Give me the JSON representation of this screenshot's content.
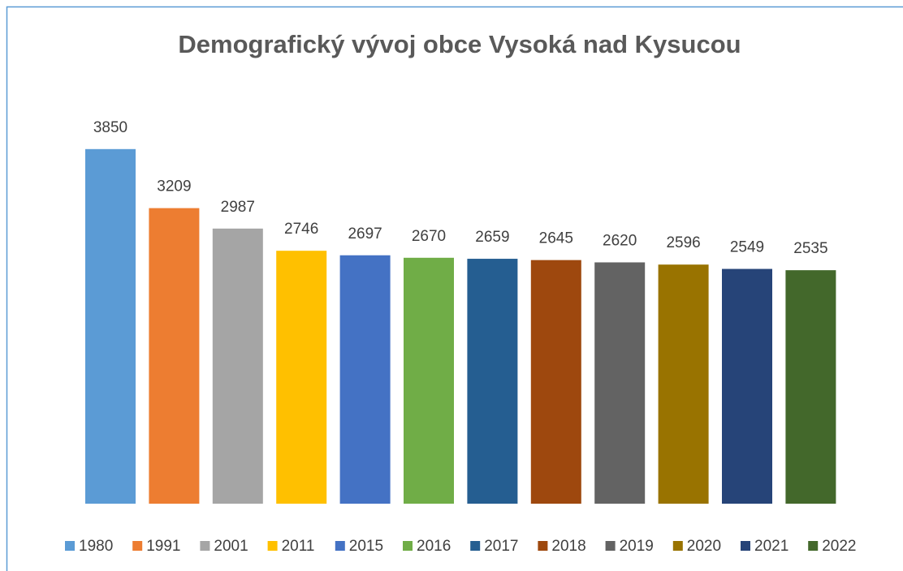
{
  "chart_data": {
    "type": "bar",
    "title": "Demografický vývoj obce Vysoká nad Kysucou",
    "ylim": [
      0,
      4500
    ],
    "legend": "bottom",
    "series": [
      {
        "name": "1980",
        "color": "#5b9bd5",
        "values": [
          3850
        ]
      },
      {
        "name": "1991",
        "color": "#ed7d31",
        "values": [
          3209
        ]
      },
      {
        "name": "2001",
        "color": "#a5a5a5",
        "values": [
          2987
        ]
      },
      {
        "name": "2011",
        "color": "#ffc000",
        "values": [
          2746
        ]
      },
      {
        "name": "2015",
        "color": "#4472c4",
        "values": [
          2697
        ]
      },
      {
        "name": "2016",
        "color": "#70ad47",
        "values": [
          2670
        ]
      },
      {
        "name": "2017",
        "color": "#255e91",
        "values": [
          2659
        ]
      },
      {
        "name": "2018",
        "color": "#9e480e",
        "values": [
          2645
        ]
      },
      {
        "name": "2019",
        "color": "#636363",
        "values": [
          2620
        ]
      },
      {
        "name": "2020",
        "color": "#997300",
        "values": [
          2596
        ]
      },
      {
        "name": "2021",
        "color": "#264478",
        "values": [
          2549
        ]
      },
      {
        "name": "2022",
        "color": "#43682b",
        "values": [
          2535
        ]
      }
    ]
  }
}
